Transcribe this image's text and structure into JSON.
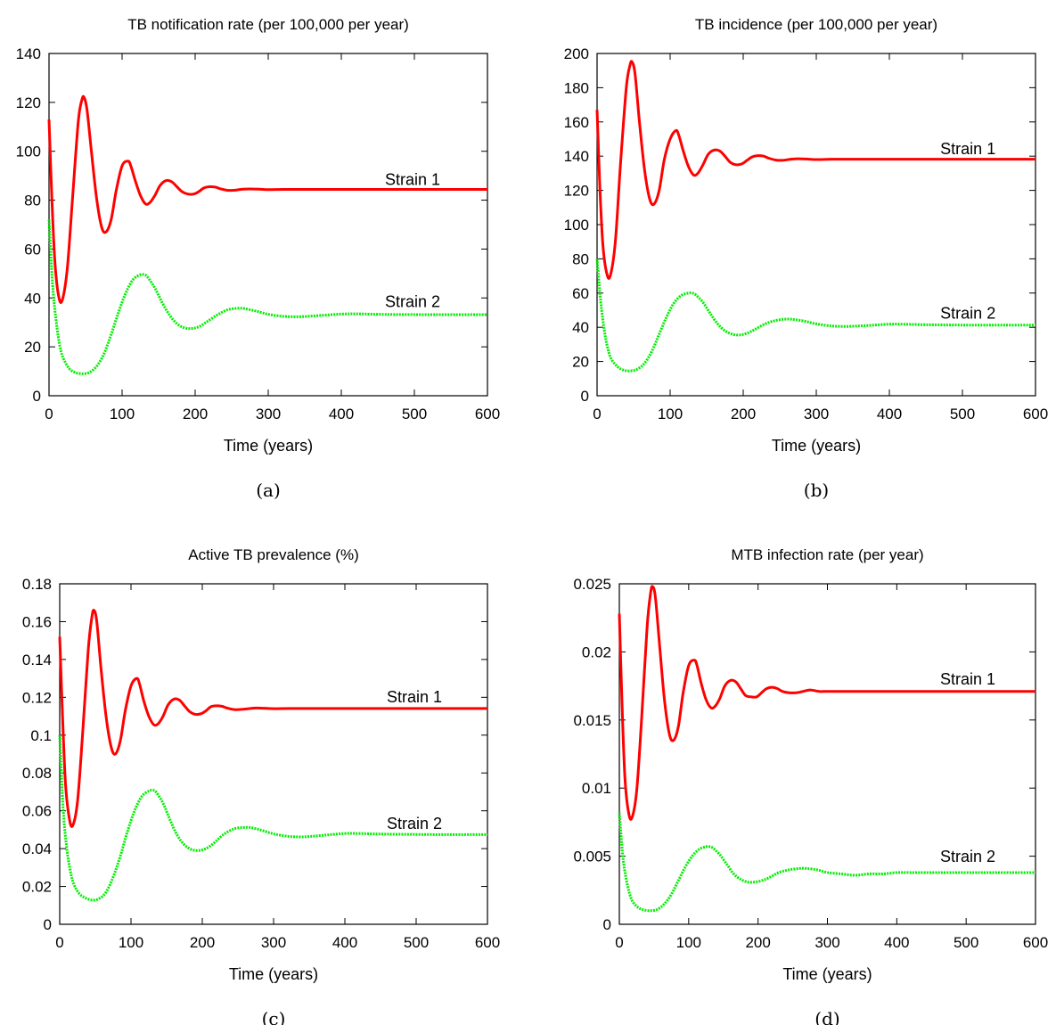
{
  "chart_data": [
    {
      "type": "line",
      "panel_label": "(a)",
      "title": "TB notification rate (per 100,000 per year)",
      "xlabel": "Time (years)",
      "ylabel": "",
      "xlim": [
        0,
        600
      ],
      "ylim": [
        0,
        140
      ],
      "xticks": [
        "0",
        "100",
        "200",
        "300",
        "400",
        "500",
        "600"
      ],
      "yticks": [
        "0",
        "20",
        "40",
        "60",
        "80",
        "100",
        "120",
        "140"
      ],
      "series": [
        {
          "name": "Strain 1",
          "color": "#ff0000",
          "style": "solid",
          "label_at": [
            500,
            84
          ],
          "x": [
            0,
            4,
            8,
            13,
            18,
            25,
            32,
            40,
            45,
            48,
            52,
            58,
            65,
            72,
            78,
            85,
            92,
            100,
            108,
            112,
            118,
            125,
            132,
            138,
            145,
            152,
            160,
            168,
            175,
            182,
            190,
            198,
            205,
            212,
            220,
            228,
            235,
            245,
            255,
            265,
            275,
            288,
            300,
            320,
            340,
            360,
            400,
            450,
            500,
            550,
            600
          ],
          "y": [
            113,
            80,
            55,
            41,
            39,
            52,
            80,
            112,
            121,
            122,
            117,
            100,
            81,
            69,
            67,
            72,
            84,
            94,
            96,
            94,
            88,
            82,
            78.5,
            79,
            82,
            86,
            88,
            87.5,
            85.5,
            83.5,
            82.5,
            82.5,
            83.5,
            85,
            85.5,
            85.3,
            84.6,
            84,
            84.1,
            84.5,
            84.6,
            84.5,
            84.3,
            84.4,
            84.4,
            84.4,
            84.4,
            84.4,
            84.4,
            84.4,
            84.4
          ]
        },
        {
          "name": "Strain 2",
          "color": "#00ee00",
          "style": "dotted",
          "label_at": [
            500,
            34
          ],
          "x": [
            0,
            5,
            10,
            15,
            20,
            28,
            36,
            45,
            55,
            65,
            75,
            85,
            95,
            105,
            115,
            125,
            130,
            135,
            145,
            155,
            165,
            175,
            185,
            195,
            205,
            215,
            230,
            245,
            260,
            270,
            285,
            300,
            320,
            340,
            360,
            380,
            400,
            420,
            450,
            500,
            550,
            600
          ],
          "y": [
            72,
            45,
            30,
            20,
            15,
            11,
            9.5,
            9,
            9.5,
            12,
            17,
            25,
            34,
            42,
            47.5,
            49.5,
            49.5,
            48.5,
            44,
            38,
            33,
            29.5,
            27.8,
            27.5,
            28.2,
            30,
            33,
            35.2,
            35.8,
            35.5,
            34.5,
            33.3,
            32.5,
            32.3,
            32.6,
            33,
            33.4,
            33.5,
            33.3,
            33.2,
            33.2,
            33.2
          ]
        }
      ]
    },
    {
      "type": "line",
      "panel_label": "(b)",
      "title": "TB incidence (per 100,000 per year)",
      "xlabel": "Time (years)",
      "ylabel": "",
      "xlim": [
        0,
        600
      ],
      "ylim": [
        0,
        200
      ],
      "xticks": [
        "0",
        "100",
        "200",
        "300",
        "400",
        "500",
        "600"
      ],
      "yticks": [
        "0",
        "20",
        "40",
        "60",
        "80",
        "100",
        "120",
        "140",
        "160",
        "180",
        "200"
      ],
      "series": [
        {
          "name": "Strain 1",
          "color": "#ff0000",
          "style": "solid",
          "label_at": [
            510,
            138
          ],
          "x": [
            0,
            4,
            8,
            13,
            18,
            25,
            32,
            40,
            45,
            48,
            52,
            58,
            65,
            72,
            78,
            85,
            92,
            100,
            108,
            112,
            118,
            125,
            132,
            138,
            145,
            152,
            160,
            168,
            175,
            182,
            190,
            198,
            205,
            212,
            220,
            228,
            235,
            245,
            255,
            265,
            275,
            288,
            300,
            320,
            340,
            360,
            400,
            450,
            500,
            550,
            600
          ],
          "y": [
            167,
            120,
            88,
            72,
            70,
            90,
            135,
            180,
            193,
            195,
            188,
            160,
            132,
            115,
            112,
            120,
            138,
            150,
            155,
            152,
            143,
            134,
            129,
            130,
            135,
            141,
            143.5,
            143,
            140,
            136.5,
            135,
            135.5,
            137.5,
            139.5,
            140.3,
            140,
            138.8,
            137.7,
            137.6,
            138.2,
            138.5,
            138.3,
            138,
            138.2,
            138.2,
            138.2,
            138.2,
            138.2,
            138.2,
            138.2,
            138.2
          ]
        },
        {
          "name": "Strain 2",
          "color": "#00ee00",
          "style": "dotted",
          "label_at": [
            510,
            42
          ],
          "x": [
            0,
            5,
            10,
            15,
            20,
            28,
            36,
            45,
            55,
            65,
            75,
            85,
            95,
            105,
            115,
            125,
            130,
            135,
            145,
            155,
            165,
            175,
            185,
            195,
            205,
            215,
            230,
            245,
            260,
            270,
            285,
            300,
            320,
            340,
            360,
            380,
            400,
            420,
            450,
            500,
            550,
            600
          ],
          "y": [
            80,
            55,
            38,
            27,
            21,
            17,
            15,
            14.5,
            15.5,
            19,
            26,
            36,
            46,
            54,
            58.5,
            60,
            60,
            59,
            54.5,
            48,
            42,
            38,
            36,
            35.5,
            36.5,
            38.5,
            42,
            44,
            44.8,
            44.5,
            43.5,
            42,
            40.8,
            40.5,
            40.8,
            41.3,
            41.8,
            41.8,
            41.5,
            41.3,
            41.3,
            41.3
          ]
        }
      ]
    },
    {
      "type": "line",
      "panel_label": "(c)",
      "title": "Active TB prevalence (%)",
      "xlabel": "Time (years)",
      "ylabel": "",
      "xlim": [
        0,
        600
      ],
      "ylim": [
        0,
        0.18
      ],
      "xticks": [
        "0",
        "100",
        "200",
        "300",
        "400",
        "500",
        "600"
      ],
      "yticks": [
        "0",
        "0.02",
        "0.04",
        "0.06",
        "0.08",
        "0.1",
        "0.12",
        "0.14",
        "0.16",
        "0.18"
      ],
      "series": [
        {
          "name": "Strain 1",
          "color": "#ff0000",
          "style": "solid",
          "label_at": [
            500,
            0.1145
          ],
          "x": [
            0,
            4,
            8,
            13,
            18,
            25,
            32,
            40,
            45,
            48,
            52,
            58,
            65,
            72,
            78,
            85,
            92,
            100,
            108,
            112,
            118,
            125,
            132,
            138,
            145,
            152,
            160,
            168,
            175,
            182,
            190,
            198,
            205,
            212,
            220,
            228,
            235,
            245,
            255,
            265,
            275,
            288,
            300,
            320,
            340,
            360,
            400,
            450,
            500,
            550,
            600
          ],
          "y": [
            0.152,
            0.11,
            0.075,
            0.057,
            0.052,
            0.065,
            0.1,
            0.145,
            0.162,
            0.166,
            0.16,
            0.135,
            0.11,
            0.094,
            0.09,
            0.097,
            0.113,
            0.126,
            0.13,
            0.127,
            0.118,
            0.11,
            0.1055,
            0.106,
            0.11,
            0.116,
            0.119,
            0.1185,
            0.1155,
            0.1125,
            0.111,
            0.1113,
            0.1128,
            0.115,
            0.1155,
            0.1152,
            0.1143,
            0.1135,
            0.1136,
            0.114,
            0.1143,
            0.1142,
            0.114,
            0.1141,
            0.1141,
            0.1141,
            0.1141,
            0.1141,
            0.1141,
            0.1141,
            0.1141
          ]
        },
        {
          "name": "Strain 2",
          "color": "#00ee00",
          "style": "dotted",
          "label_at": [
            500,
            0.0475
          ],
          "x": [
            0,
            5,
            10,
            15,
            20,
            28,
            36,
            45,
            55,
            65,
            75,
            85,
            95,
            105,
            115,
            125,
            130,
            135,
            145,
            155,
            165,
            175,
            185,
            195,
            205,
            215,
            230,
            245,
            260,
            270,
            285,
            300,
            320,
            340,
            360,
            380,
            400,
            420,
            450,
            500,
            550,
            600
          ],
          "y": [
            0.1,
            0.06,
            0.04,
            0.028,
            0.021,
            0.016,
            0.014,
            0.0128,
            0.0135,
            0.017,
            0.025,
            0.036,
            0.049,
            0.06,
            0.0675,
            0.0705,
            0.0708,
            0.07,
            0.064,
            0.055,
            0.047,
            0.042,
            0.0395,
            0.039,
            0.04,
            0.0425,
            0.0475,
            0.0505,
            0.0512,
            0.051,
            0.0495,
            0.0478,
            0.0465,
            0.0462,
            0.0467,
            0.0474,
            0.048,
            0.048,
            0.0477,
            0.0475,
            0.0474,
            0.0474
          ]
        }
      ]
    },
    {
      "type": "line",
      "panel_label": "(d)",
      "title": "MTB infection rate (per year)",
      "xlabel": "Time (years)",
      "ylabel": "",
      "xlim": [
        0,
        600
      ],
      "ylim": [
        0,
        0.025
      ],
      "xticks": [
        "0",
        "100",
        "200",
        "300",
        "400",
        "500",
        "600"
      ],
      "yticks": [
        "0",
        "0.005",
        "0.01",
        "0.015",
        "0.02",
        "0.025"
      ],
      "series": [
        {
          "name": "Strain 1",
          "color": "#ff0000",
          "style": "solid",
          "label_at": [
            505,
            0.0172
          ],
          "x": [
            0,
            4,
            8,
            13,
            18,
            25,
            32,
            40,
            45,
            48,
            52,
            58,
            65,
            72,
            78,
            85,
            92,
            100,
            108,
            112,
            118,
            125,
            132,
            138,
            145,
            152,
            160,
            168,
            175,
            182,
            190,
            198,
            205,
            212,
            220,
            228,
            235,
            245,
            255,
            265,
            275,
            288,
            300,
            320,
            340,
            360,
            400,
            450,
            500,
            550,
            600
          ],
          "y": [
            0.0228,
            0.016,
            0.0108,
            0.0083,
            0.0078,
            0.0098,
            0.015,
            0.0218,
            0.0243,
            0.0248,
            0.024,
            0.0205,
            0.0165,
            0.014,
            0.0135,
            0.0145,
            0.017,
            0.019,
            0.0194,
            0.019,
            0.0177,
            0.0165,
            0.0159,
            0.016,
            0.0166,
            0.0175,
            0.0179,
            0.0178,
            0.0173,
            0.0168,
            0.0167,
            0.0167,
            0.017,
            0.0173,
            0.0174,
            0.0173,
            0.0171,
            0.017,
            0.017,
            0.0171,
            0.0172,
            0.0171,
            0.0171,
            0.0171,
            0.0171,
            0.0171,
            0.0171,
            0.0171,
            0.0171,
            0.0171,
            0.0171
          ]
        },
        {
          "name": "Strain 2",
          "color": "#00ee00",
          "style": "dotted",
          "label_at": [
            505,
            0.0042
          ],
          "x": [
            0,
            5,
            10,
            15,
            20,
            28,
            36,
            45,
            55,
            65,
            75,
            85,
            95,
            105,
            115,
            125,
            130,
            135,
            145,
            155,
            165,
            175,
            185,
            195,
            205,
            215,
            230,
            245,
            260,
            270,
            285,
            300,
            320,
            340,
            360,
            380,
            400,
            420,
            450,
            500,
            550,
            600
          ],
          "y": [
            0.0082,
            0.005,
            0.0033,
            0.0022,
            0.0016,
            0.0012,
            0.00105,
            0.001,
            0.0011,
            0.0015,
            0.0022,
            0.0032,
            0.0042,
            0.005,
            0.0055,
            0.0057,
            0.0057,
            0.0056,
            0.0051,
            0.0044,
            0.0037,
            0.0033,
            0.0031,
            0.0031,
            0.0032,
            0.0034,
            0.0038,
            0.004,
            0.0041,
            0.0041,
            0.004,
            0.0038,
            0.0037,
            0.0036,
            0.0037,
            0.0037,
            0.0038,
            0.0038,
            0.0038,
            0.0038,
            0.0038,
            0.0038
          ]
        }
      ]
    }
  ]
}
